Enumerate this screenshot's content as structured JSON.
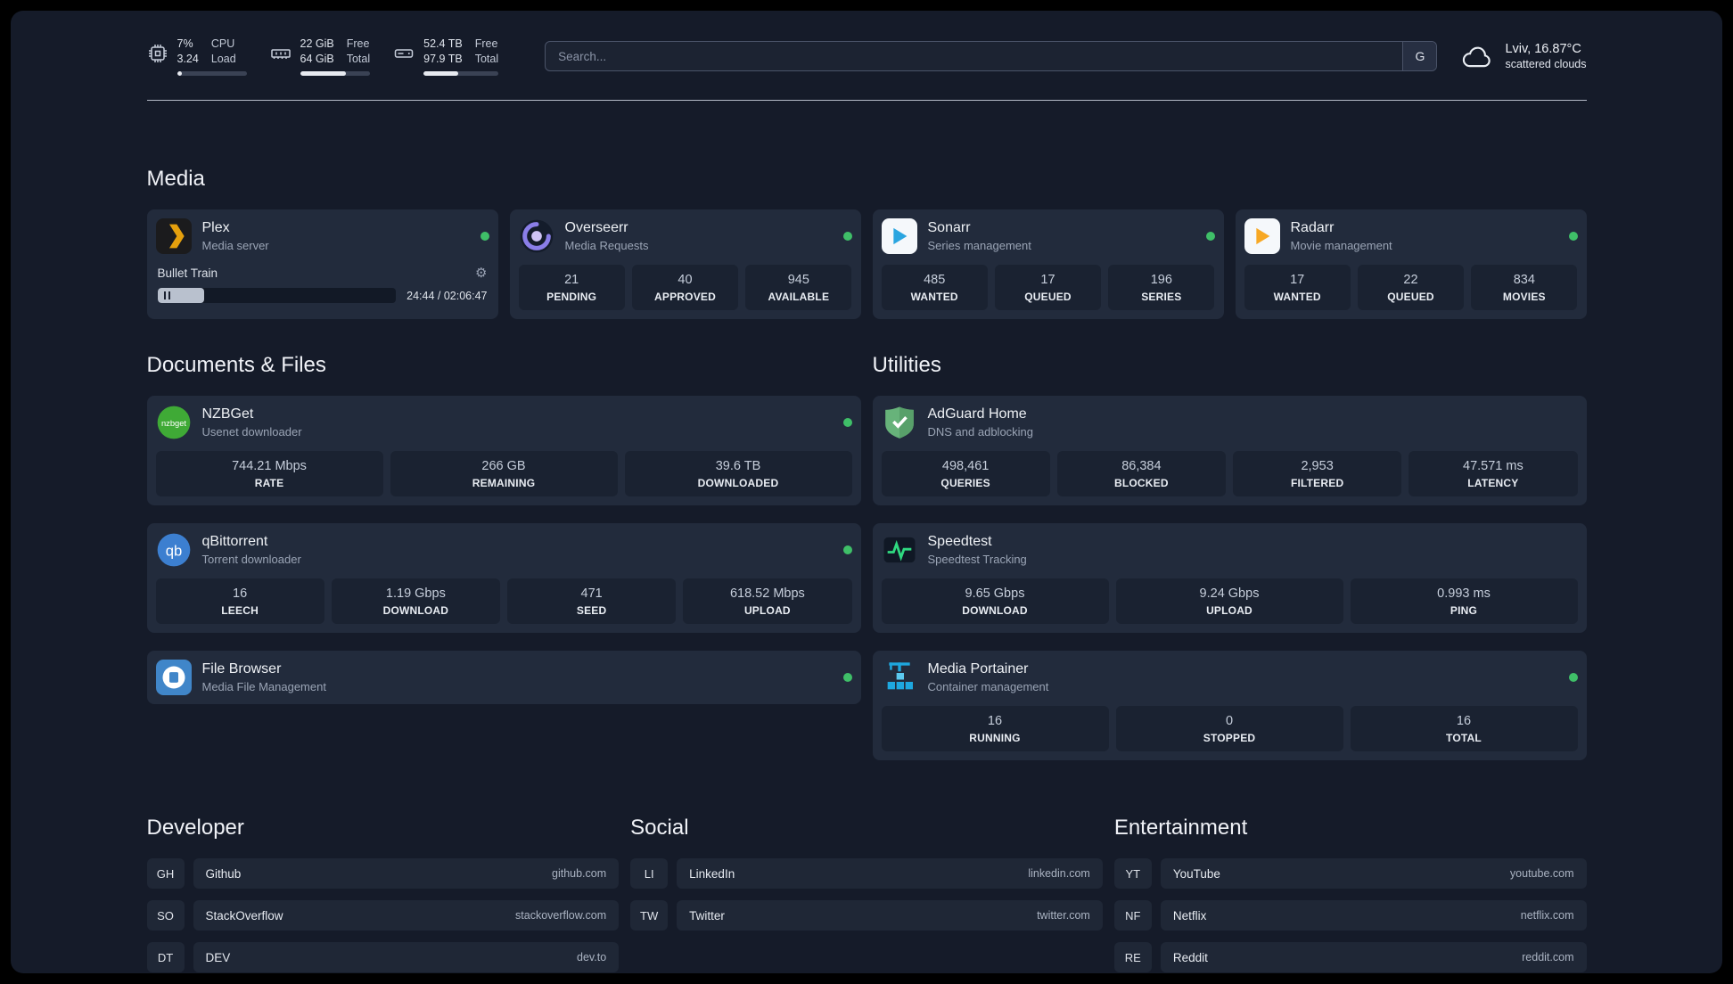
{
  "topbar": {
    "cpu": {
      "value1": "7%",
      "value2": "3.24",
      "label1": "CPU",
      "label2": "Load",
      "percent": 7
    },
    "ram": {
      "value1": "22 GiB",
      "value2": "64 GiB",
      "label1": "Free",
      "label2": "Total",
      "percent": 66
    },
    "disk": {
      "value1": "52.4 TB",
      "value2": "97.9 TB",
      "label1": "Free",
      "label2": "Total",
      "percent": 46
    },
    "search": {
      "placeholder": "Search...",
      "engine_button": "G"
    },
    "weather": {
      "location": "Lviv, 16.87°C",
      "condition": "scattered clouds"
    }
  },
  "media": {
    "title": "Media",
    "plex": {
      "name": "Plex",
      "subtitle": "Media server",
      "now_playing": "Bullet Train",
      "time": "24:44 / 02:06:47",
      "progress_percent": 19.5
    },
    "overseerr": {
      "name": "Overseerr",
      "subtitle": "Media Requests",
      "stats": [
        {
          "value": "21",
          "label": "PENDING"
        },
        {
          "value": "40",
          "label": "APPROVED"
        },
        {
          "value": "945",
          "label": "AVAILABLE"
        }
      ]
    },
    "sonarr": {
      "name": "Sonarr",
      "subtitle": "Series management",
      "stats": [
        {
          "value": "485",
          "label": "WANTED"
        },
        {
          "value": "17",
          "label": "QUEUED"
        },
        {
          "value": "196",
          "label": "SERIES"
        }
      ]
    },
    "radarr": {
      "name": "Radarr",
      "subtitle": "Movie management",
      "stats": [
        {
          "value": "17",
          "label": "WANTED"
        },
        {
          "value": "22",
          "label": "QUEUED"
        },
        {
          "value": "834",
          "label": "MOVIES"
        }
      ]
    }
  },
  "documents": {
    "title": "Documents & Files",
    "nzbget": {
      "name": "NZBGet",
      "subtitle": "Usenet downloader",
      "stats": [
        {
          "value": "744.21 Mbps",
          "label": "RATE"
        },
        {
          "value": "266 GB",
          "label": "REMAINING"
        },
        {
          "value": "39.6 TB",
          "label": "DOWNLOADED"
        }
      ]
    },
    "qbittorrent": {
      "name": "qBittorrent",
      "subtitle": "Torrent downloader",
      "stats": [
        {
          "value": "16",
          "label": "LEECH"
        },
        {
          "value": "1.19 Gbps",
          "label": "DOWNLOAD"
        },
        {
          "value": "471",
          "label": "SEED"
        },
        {
          "value": "618.52 Mbps",
          "label": "UPLOAD"
        }
      ]
    },
    "filebrowser": {
      "name": "File Browser",
      "subtitle": "Media File Management"
    }
  },
  "utilities": {
    "title": "Utilities",
    "adguard": {
      "name": "AdGuard Home",
      "subtitle": "DNS and adblocking",
      "stats": [
        {
          "value": "498,461",
          "label": "QUERIES"
        },
        {
          "value": "86,384",
          "label": "BLOCKED"
        },
        {
          "value": "2,953",
          "label": "FILTERED"
        },
        {
          "value": "47.571 ms",
          "label": "LATENCY"
        }
      ]
    },
    "speedtest": {
      "name": "Speedtest",
      "subtitle": "Speedtest Tracking",
      "stats": [
        {
          "value": "9.65 Gbps",
          "label": "DOWNLOAD"
        },
        {
          "value": "9.24 Gbps",
          "label": "UPLOAD"
        },
        {
          "value": "0.993 ms",
          "label": "PING"
        }
      ]
    },
    "portainer": {
      "name": "Media Portainer",
      "subtitle": "Container management",
      "stats": [
        {
          "value": "16",
          "label": "RUNNING"
        },
        {
          "value": "0",
          "label": "STOPPED"
        },
        {
          "value": "16",
          "label": "TOTAL"
        }
      ]
    }
  },
  "bookmarks": {
    "developer": {
      "title": "Developer",
      "items": [
        {
          "abbr": "GH",
          "name": "Github",
          "url": "github.com"
        },
        {
          "abbr": "SO",
          "name": "StackOverflow",
          "url": "stackoverflow.com"
        },
        {
          "abbr": "DT",
          "name": "DEV",
          "url": "dev.to"
        }
      ]
    },
    "social": {
      "title": "Social",
      "items": [
        {
          "abbr": "LI",
          "name": "LinkedIn",
          "url": "linkedin.com"
        },
        {
          "abbr": "TW",
          "name": "Twitter",
          "url": "twitter.com"
        }
      ]
    },
    "entertainment": {
      "title": "Entertainment",
      "items": [
        {
          "abbr": "YT",
          "name": "YouTube",
          "url": "youtube.com"
        },
        {
          "abbr": "NF",
          "name": "Netflix",
          "url": "netflix.com"
        },
        {
          "abbr": "RE",
          "name": "Reddit",
          "url": "reddit.com"
        }
      ]
    }
  },
  "icons": {
    "gear": "⚙",
    "nzbget_label": "nzbget",
    "qbittorrent_label": "qb"
  },
  "colors": {
    "background": "#151b29",
    "card": "#222b3c",
    "tile": "#1a2231",
    "status_green": "#3fbf68",
    "plex_amber": "#e5a00d",
    "sonarr_blue": "#2aa5e0",
    "radarr_amber": "#f7a824",
    "adguard_green": "#67b37a",
    "portainer_blue": "#1ea7df"
  }
}
